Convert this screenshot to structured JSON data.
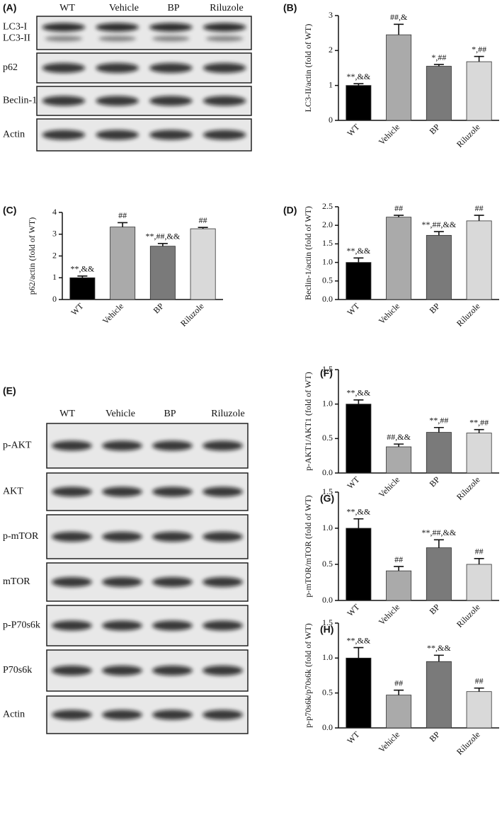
{
  "blots": [
    {
      "panel": "(A)",
      "lanes": [
        "WT",
        "Vehicle",
        "BP",
        "Riluzole"
      ],
      "rows": [
        {
          "labels": [
            "LC3-I",
            "LC3-II"
          ]
        },
        {
          "labels": [
            "p62"
          ]
        },
        {
          "labels": [
            "Beclin-1"
          ]
        },
        {
          "labels": [
            "Actin"
          ]
        }
      ]
    },
    {
      "panel": "(E)",
      "lanes": [
        "WT",
        "Vehicle",
        "BP",
        "Riluzole"
      ],
      "rows": [
        {
          "labels": [
            "p-AKT"
          ]
        },
        {
          "labels": [
            "AKT"
          ]
        },
        {
          "labels": [
            "p-mTOR"
          ]
        },
        {
          "labels": [
            "mTOR"
          ]
        },
        {
          "labels": [
            "p-P70s6k"
          ]
        },
        {
          "labels": [
            "P70s6k"
          ]
        },
        {
          "labels": [
            "Actin"
          ]
        }
      ]
    }
  ],
  "chart_data": [
    {
      "type": "bar",
      "panel": "(B)",
      "ylabel": "LC3-II/actin (fold of WT)",
      "categories": [
        "WT",
        "Vehicle",
        "BP",
        "Riluzole"
      ],
      "values": [
        1.0,
        2.45,
        1.55,
        1.68
      ],
      "errors": [
        0.05,
        0.3,
        0.05,
        0.15
      ],
      "annotations": [
        "**,&&",
        "##,&",
        "*,##",
        "*,##"
      ],
      "colors": [
        "#000000",
        "#aaaaaa",
        "#7a7a7a",
        "#d9d9d9"
      ],
      "ylim": [
        0,
        3
      ],
      "yticks": [
        0,
        1,
        2,
        3
      ]
    },
    {
      "type": "bar",
      "panel": "(C)",
      "ylabel": "p62/actin (fold of WT)",
      "categories": [
        "WT",
        "Vehicle",
        "BP",
        "Riluzole"
      ],
      "values": [
        1.0,
        3.33,
        2.45,
        3.25
      ],
      "errors": [
        0.08,
        0.2,
        0.12,
        0.06
      ],
      "annotations": [
        "**,&&",
        "##",
        "**,##,&&",
        "##"
      ],
      "colors": [
        "#000000",
        "#aaaaaa",
        "#7a7a7a",
        "#d9d9d9"
      ],
      "ylim": [
        0,
        4
      ],
      "yticks": [
        0,
        1,
        2,
        3,
        4
      ]
    },
    {
      "type": "bar",
      "panel": "(D)",
      "ylabel": "Beclin-1/actin (fold of WT)",
      "categories": [
        "WT",
        "Vehicle",
        "BP",
        "Riluzole"
      ],
      "values": [
        1.0,
        2.22,
        1.73,
        2.12
      ],
      "errors": [
        0.12,
        0.05,
        0.1,
        0.15
      ],
      "annotations": [
        "**,&&",
        "##",
        "**,##,&&",
        "##"
      ],
      "colors": [
        "#000000",
        "#aaaaaa",
        "#7a7a7a",
        "#d9d9d9"
      ],
      "ylim": [
        0,
        2.5
      ],
      "yticks": [
        {
          "value": 0,
          "label": "0.0"
        },
        0.5,
        {
          "value": 1,
          "label": "1.0"
        },
        1.5,
        {
          "value": 2,
          "label": "2.0"
        },
        2.5
      ]
    },
    {
      "type": "bar",
      "panel": "(F)",
      "ylabel": "p-AKT1/AKT1 (fold of WT)",
      "categories": [
        "WT",
        "Vehicle",
        "BP",
        "Riluzole"
      ],
      "values": [
        1.0,
        0.38,
        0.59,
        0.58
      ],
      "errors": [
        0.06,
        0.04,
        0.07,
        0.05
      ],
      "annotations": [
        "**,&&",
        "##,&&",
        "**,##",
        "**,##"
      ],
      "colors": [
        "#000000",
        "#aaaaaa",
        "#7a7a7a",
        "#d9d9d9"
      ],
      "ylim": [
        0,
        1.5
      ],
      "yticks": [
        {
          "value": 0,
          "label": "0.0"
        },
        0.5,
        {
          "value": 1,
          "label": "1.0"
        },
        1.5
      ]
    },
    {
      "type": "bar",
      "panel": "(G)",
      "ylabel": "p-mTOR/mTOR (fold of WT)",
      "categories": [
        "WT",
        "Vehicle",
        "BP",
        "Riluzole"
      ],
      "values": [
        1.0,
        0.41,
        0.73,
        0.5
      ],
      "errors": [
        0.13,
        0.06,
        0.11,
        0.08
      ],
      "annotations": [
        "**,&&",
        "##",
        "**,##,&&",
        "##"
      ],
      "colors": [
        "#000000",
        "#aaaaaa",
        "#7a7a7a",
        "#d9d9d9"
      ],
      "ylim": [
        0,
        1.5
      ],
      "yticks": [
        {
          "value": 0,
          "label": "0.0"
        },
        0.5,
        {
          "value": 1,
          "label": "1.0"
        },
        1.5
      ]
    },
    {
      "type": "bar",
      "panel": "(H)",
      "ylabel": "p-p70s6k/p70s6k (fold of WT)",
      "categories": [
        "WT",
        "Vehicle",
        "BP",
        "Riluzole"
      ],
      "values": [
        1.0,
        0.47,
        0.95,
        0.52
      ],
      "errors": [
        0.15,
        0.07,
        0.09,
        0.05
      ],
      "annotations": [
        "**,&&",
        "##",
        "**,&&",
        "##"
      ],
      "colors": [
        "#000000",
        "#aaaaaa",
        "#7a7a7a",
        "#d9d9d9"
      ],
      "ylim": [
        0,
        1.5
      ],
      "yticks": [
        {
          "value": 0,
          "label": "0.0"
        },
        0.5,
        {
          "value": 1,
          "label": "1.0"
        },
        1.5
      ]
    }
  ]
}
